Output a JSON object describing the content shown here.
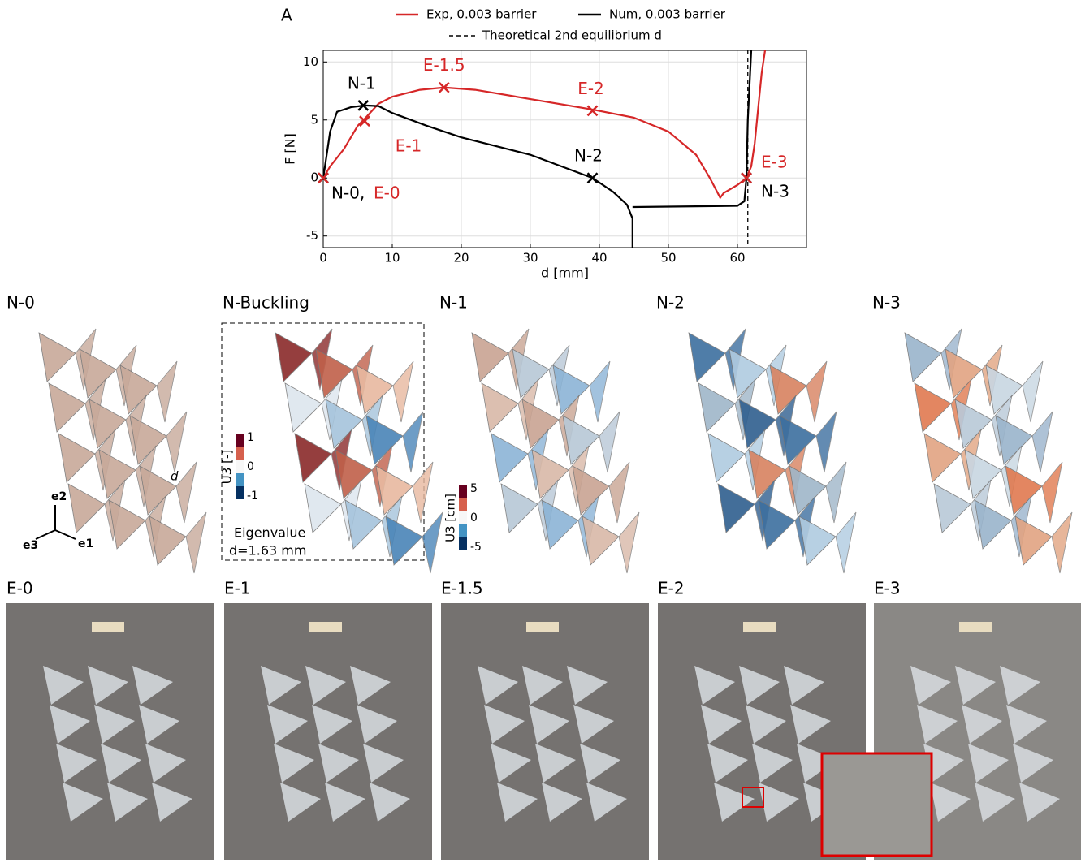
{
  "panel_label": "A",
  "chart_data": {
    "type": "line",
    "xlabel": "d [mm]",
    "ylabel": "F [N]",
    "xlim": [
      0,
      70
    ],
    "ylim": [
      -6,
      11
    ],
    "xticks": [
      0,
      10,
      20,
      30,
      40,
      50,
      60
    ],
    "yticks": [
      -5,
      0,
      5,
      10
    ],
    "grid": true,
    "series": [
      {
        "name": "Exp, 0.003 barrier",
        "color": "#d62728",
        "x": [
          0,
          1,
          3,
          5,
          6,
          8,
          10,
          14,
          17.5,
          22,
          30,
          39,
          45,
          50,
          54,
          56,
          57.5,
          58,
          60,
          61.3,
          62,
          62.5,
          63,
          63.5,
          64
        ],
        "values": [
          0,
          1,
          2.5,
          4.5,
          5.1,
          6.4,
          7,
          7.6,
          7.8,
          7.6,
          6.8,
          5.9,
          5.2,
          4,
          2,
          0,
          -1.7,
          -1.3,
          -0.6,
          0,
          1,
          3,
          6,
          9,
          11
        ]
      },
      {
        "name": "Num, 0.003 barrier",
        "color": "#000000",
        "x": [
          0,
          0.5,
          1,
          2,
          4,
          6,
          8,
          10,
          15,
          20,
          30,
          39,
          42,
          44,
          44.8,
          44.8,
          null,
          44.8,
          60,
          61,
          61.3,
          61.5,
          62
        ],
        "values": [
          0,
          2,
          4,
          5.7,
          6.1,
          6.25,
          6.2,
          5.6,
          4.5,
          3.5,
          2,
          0,
          -1.2,
          -2.3,
          -3.5,
          -6,
          null,
          -2.5,
          -2.4,
          -2,
          0,
          5,
          11
        ]
      }
    ],
    "vlines": [
      {
        "name": "Theoretical 2nd equilibrium d",
        "x": 61.5,
        "color": "#000000"
      }
    ],
    "points": [
      {
        "label": "N-0,",
        "x": 0,
        "y": 0,
        "color": "#000000"
      },
      {
        "label": "E-0",
        "x": 0,
        "y": 0,
        "color": "#d62728"
      },
      {
        "label": "N-1",
        "x": 5.8,
        "y": 6.25,
        "color": "#000000"
      },
      {
        "label": "E-1",
        "x": 6,
        "y": 4.9,
        "color": "#d62728"
      },
      {
        "label": "E-1.5",
        "x": 17.5,
        "y": 7.8,
        "color": "#d62728"
      },
      {
        "label": "E-2",
        "x": 39,
        "y": 5.8,
        "color": "#d62728"
      },
      {
        "label": "N-2",
        "x": 39,
        "y": 0,
        "color": "#000000"
      },
      {
        "label": "N-3",
        "x": 61.3,
        "y": 0,
        "color": "#000000"
      },
      {
        "label": "E-3",
        "x": 61.3,
        "y": 0,
        "color": "#d62728"
      }
    ]
  },
  "simulations": [
    {
      "label": "N-0"
    },
    {
      "label": "N-Buckling"
    },
    {
      "label": "N-1"
    },
    {
      "label": "N-2"
    },
    {
      "label": "N-3"
    }
  ],
  "colorbars": [
    {
      "title": "U3 [-]",
      "ticks": [
        "1",
        "0",
        "-1"
      ]
    },
    {
      "title": "U3 [cm]",
      "ticks": [
        "5",
        "0",
        "-5"
      ]
    }
  ],
  "eigen": {
    "line1": "Eigenvalue",
    "line2": "d=1.63 mm"
  },
  "axes_labels": {
    "e1": "e1",
    "e2": "e2",
    "e3": "e3",
    "d": "d"
  },
  "experiments": [
    {
      "label": "E-0"
    },
    {
      "label": "E-1"
    },
    {
      "label": "E-1.5"
    },
    {
      "label": "E-2"
    },
    {
      "label": "E-3"
    }
  ]
}
